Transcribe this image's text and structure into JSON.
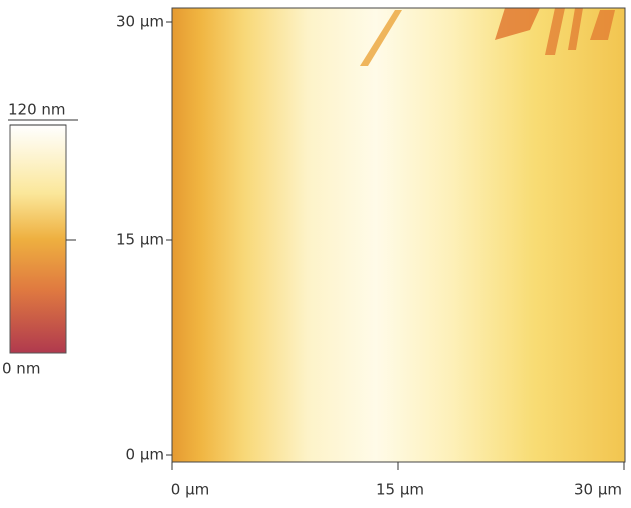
{
  "image": {
    "x_ticks": [
      "0 µm",
      "15 µm",
      "30 µm"
    ],
    "y_ticks": [
      "0 µm",
      "15 µm",
      "30 µm"
    ],
    "colorbar": {
      "max_label": "120 nm",
      "min_label": "0 nm"
    }
  }
}
